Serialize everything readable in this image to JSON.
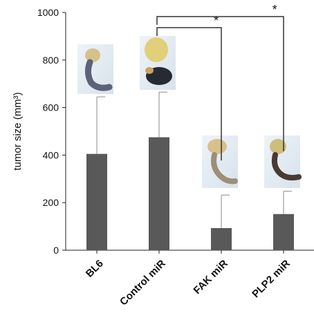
{
  "chart_data": {
    "type": "bar",
    "categories": [
      "BL6",
      "Control miR",
      "FAK miR",
      "PLP2 miR"
    ],
    "values": [
      405,
      475,
      93,
      152
    ],
    "error_upper": [
      645,
      665,
      232,
      248
    ],
    "ylabel": "tumor size (mm³)",
    "ylim": [
      0,
      1000
    ],
    "yticks": [
      0,
      200,
      400,
      600,
      800,
      1000
    ],
    "grid": false,
    "bar_color": "#595959",
    "significance": [
      {
        "from": "Control miR",
        "to": "FAK miR",
        "label": "*"
      },
      {
        "from": "Control miR",
        "to": "PLP2 miR",
        "label": "*"
      }
    ],
    "images": [
      {
        "category": "BL6",
        "content": "tumor-photo"
      },
      {
        "category": "Control miR",
        "content": "tumor-photo"
      },
      {
        "category": "FAK miR",
        "content": "tumor-photo"
      },
      {
        "category": "PLP2 miR",
        "content": "tumor-photo"
      }
    ]
  }
}
